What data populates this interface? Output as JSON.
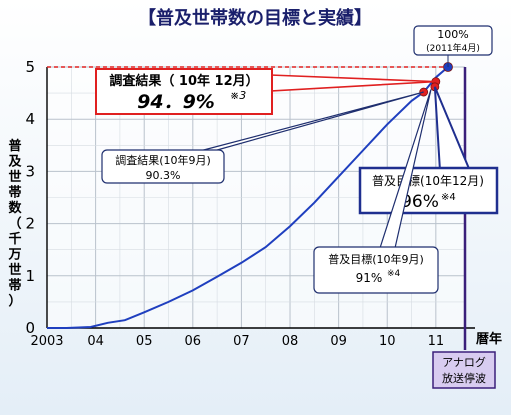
{
  "chart_data": {
    "type": "line",
    "title": "【普及世帯数の目標と実績】",
    "xlabel": "暦年",
    "ylabel": "普及世帯数（千万世帯）",
    "x_ticks": [
      "2003",
      "04",
      "05",
      "06",
      "07",
      "08",
      "09",
      "10",
      "11"
    ],
    "y_ticks": [
      0,
      1,
      2,
      3,
      4,
      5
    ],
    "ylim": [
      0,
      5
    ],
    "xlim": [
      2003.0,
      2011.6
    ],
    "grid": true,
    "target_line_y": 5,
    "series": [
      {
        "color": "#1f3fbf",
        "x": [
          2003.0,
          2003.4,
          2003.9,
          2004.25,
          2004.6,
          2005.0,
          2005.5,
          2006.0,
          2006.5,
          2007.0,
          2007.5,
          2008.0,
          2008.5,
          2009.0,
          2009.5,
          2010.0,
          2010.5,
          2010.75,
          2011.0
        ],
        "y": [
          0.0,
          0.0,
          0.02,
          0.1,
          0.15,
          0.3,
          0.5,
          0.72,
          0.98,
          1.25,
          1.55,
          1.95,
          2.4,
          2.9,
          3.4,
          3.9,
          4.35,
          4.52,
          4.8
        ]
      }
    ],
    "points": [
      {
        "key": "survey_dec",
        "x": 2011.0,
        "y": 4.72,
        "color": "#e02020"
      },
      {
        "key": "target_dec",
        "x": 2010.98,
        "y": 4.62,
        "color": "#e02020"
      },
      {
        "key": "survey_sep",
        "x": 2010.75,
        "y": 4.52,
        "color": "#e02020"
      },
      {
        "key": "target_apr",
        "x": 2011.25,
        "y": 5.0,
        "color": "#1f3fbf"
      }
    ],
    "annotations": {
      "survey_dec": {
        "line1": "調査結果（ 10年 12月）",
        "line2": "94．9%",
        "sup": "※3"
      },
      "survey_sep": {
        "line1": "調査結果(10年9月)",
        "line2": "90.3%"
      },
      "target_dec": {
        "line1": "普及目標(10年12月)",
        "line2": "96%",
        "sup": "※4"
      },
      "target_sep": {
        "line1": "普及目標(10年9月)",
        "line2": "91%",
        "sup": "※4"
      },
      "target_final": {
        "line1": "100%",
        "line2": "(2011年4月)"
      },
      "analog_end": {
        "line1": "アナログ",
        "line2": "放送停波"
      }
    },
    "colors": {
      "line": "#1f3fbf",
      "highlight": "#e02020",
      "analog_box": "#d8ccf0",
      "axis_end": "#3a1f7a"
    }
  }
}
